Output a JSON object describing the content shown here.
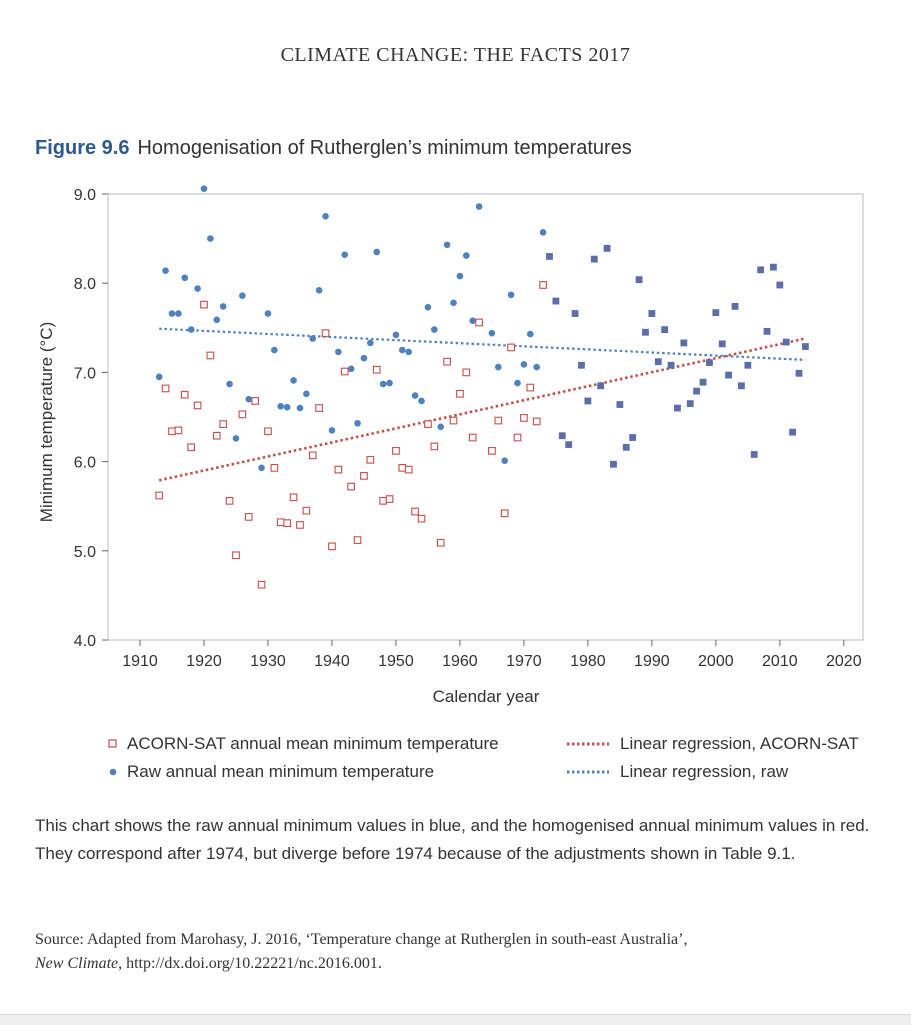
{
  "header": {
    "running_head": "CLIMATE CHANGE: THE FACTS 2017"
  },
  "figure": {
    "label": "Figure 9.6",
    "title": "Homogenisation of Rutherglen’s minimum temperatures"
  },
  "legend": {
    "acorn": "ACORN-SAT annual mean minimum temperature",
    "raw": "Raw annual mean minimum temperature",
    "reg_acorn": "Linear regression, ACORN-SAT",
    "reg_raw": "Linear regression, raw"
  },
  "caption": "This chart shows the raw annual minimum values in blue, and the homogenised annual minimum values in red. They correspond after 1974, but diverge before 1974 because of the adjustments shown in Table 9.1.",
  "source": {
    "prefix": "Source: Adapted from Marohasy, J. 2016, ‘Temperature change at Rutherglen in south-east Australia’,",
    "journal": "New Climate",
    "suffix": ", http://dx.doi.org/10.22221/nc.2016.001."
  },
  "colors": {
    "acorn": "#c0504d",
    "raw": "#4f81bd",
    "raw_marker_post1974": "#5b6ea8",
    "axis": "#666666",
    "frame": "#bbbbbb"
  },
  "chart_data": {
    "type": "scatter",
    "xlabel": "Calendar year",
    "ylabel": "Minimum temperature (°C)",
    "xlim": [
      1905,
      2023
    ],
    "ylim": [
      4.0,
      9.0
    ],
    "xticks": [
      "1910",
      "1920",
      "1930",
      "1940",
      "1950",
      "1960",
      "1970",
      "1980",
      "1990",
      "2000",
      "2010",
      "2020"
    ],
    "yticks": [
      "4.0",
      "5.0",
      "6.0",
      "7.0",
      "8.0",
      "9.0"
    ],
    "grid": false,
    "series": [
      {
        "name": "ACORN-SAT annual mean minimum temperature",
        "marker": "open-square",
        "points": [
          [
            1913,
            5.62
          ],
          [
            1914,
            6.82
          ],
          [
            1915,
            6.34
          ],
          [
            1916,
            6.35
          ],
          [
            1917,
            6.75
          ],
          [
            1918,
            6.16
          ],
          [
            1919,
            6.63
          ],
          [
            1920,
            7.76
          ],
          [
            1921,
            7.19
          ],
          [
            1922,
            6.29
          ],
          [
            1923,
            6.42
          ],
          [
            1924,
            5.56
          ],
          [
            1925,
            4.95
          ],
          [
            1926,
            6.53
          ],
          [
            1927,
            5.38
          ],
          [
            1928,
            6.68
          ],
          [
            1929,
            4.62
          ],
          [
            1930,
            6.34
          ],
          [
            1931,
            5.93
          ],
          [
            1932,
            5.32
          ],
          [
            1933,
            5.31
          ],
          [
            1934,
            5.6
          ],
          [
            1935,
            5.29
          ],
          [
            1936,
            5.45
          ],
          [
            1937,
            6.07
          ],
          [
            1938,
            6.6
          ],
          [
            1939,
            7.44
          ],
          [
            1940,
            5.05
          ],
          [
            1941,
            5.91
          ],
          [
            1942,
            7.01
          ],
          [
            1943,
            5.72
          ],
          [
            1944,
            5.12
          ],
          [
            1945,
            5.84
          ],
          [
            1946,
            6.02
          ],
          [
            1947,
            7.03
          ],
          [
            1948,
            5.56
          ],
          [
            1949,
            5.58
          ],
          [
            1950,
            6.12
          ],
          [
            1951,
            5.93
          ],
          [
            1952,
            5.91
          ],
          [
            1953,
            5.44
          ],
          [
            1954,
            5.36
          ],
          [
            1955,
            6.42
          ],
          [
            1956,
            6.17
          ],
          [
            1957,
            5.09
          ],
          [
            1958,
            7.12
          ],
          [
            1959,
            6.46
          ],
          [
            1960,
            6.76
          ],
          [
            1961,
            7.0
          ],
          [
            1962,
            6.27
          ],
          [
            1963,
            7.56
          ],
          [
            1965,
            6.12
          ],
          [
            1966,
            6.46
          ],
          [
            1967,
            5.42
          ],
          [
            1968,
            7.28
          ],
          [
            1969,
            6.27
          ],
          [
            1970,
            6.49
          ],
          [
            1971,
            6.83
          ],
          [
            1972,
            6.45
          ],
          [
            1973,
            7.98
          ]
        ]
      },
      {
        "name": "Raw annual mean minimum temperature",
        "marker": "dot",
        "points": [
          [
            1913,
            6.95
          ],
          [
            1914,
            8.14
          ],
          [
            1915,
            7.66
          ],
          [
            1916,
            7.66
          ],
          [
            1917,
            8.06
          ],
          [
            1918,
            7.48
          ],
          [
            1919,
            7.94
          ],
          [
            1920,
            9.06
          ],
          [
            1921,
            8.5
          ],
          [
            1922,
            7.59
          ],
          [
            1923,
            7.74
          ],
          [
            1924,
            6.87
          ],
          [
            1925,
            6.26
          ],
          [
            1926,
            7.86
          ],
          [
            1927,
            6.7
          ],
          [
            1929,
            5.93
          ],
          [
            1930,
            7.66
          ],
          [
            1931,
            7.25
          ],
          [
            1932,
            6.62
          ],
          [
            1933,
            6.61
          ],
          [
            1934,
            6.91
          ],
          [
            1935,
            6.6
          ],
          [
            1936,
            6.76
          ],
          [
            1937,
            7.38
          ],
          [
            1938,
            7.92
          ],
          [
            1939,
            8.75
          ],
          [
            1940,
            6.35
          ],
          [
            1941,
            7.23
          ],
          [
            1942,
            8.32
          ],
          [
            1943,
            7.04
          ],
          [
            1944,
            6.43
          ],
          [
            1945,
            7.16
          ],
          [
            1946,
            7.33
          ],
          [
            1947,
            8.35
          ],
          [
            1948,
            6.87
          ],
          [
            1949,
            6.88
          ],
          [
            1950,
            7.42
          ],
          [
            1951,
            7.25
          ],
          [
            1952,
            7.23
          ],
          [
            1953,
            6.74
          ],
          [
            1954,
            6.68
          ],
          [
            1955,
            7.73
          ],
          [
            1956,
            7.48
          ],
          [
            1957,
            6.39
          ],
          [
            1958,
            8.43
          ],
          [
            1959,
            7.78
          ],
          [
            1960,
            8.08
          ],
          [
            1961,
            8.31
          ],
          [
            1962,
            7.58
          ],
          [
            1963,
            8.86
          ],
          [
            1965,
            7.44
          ],
          [
            1966,
            7.06
          ],
          [
            1967,
            6.01
          ],
          [
            1968,
            7.87
          ],
          [
            1969,
            6.88
          ],
          [
            1970,
            7.09
          ],
          [
            1971,
            7.43
          ],
          [
            1972,
            7.06
          ],
          [
            1973,
            8.57
          ],
          [
            1974,
            8.3
          ],
          [
            1975,
            7.8
          ],
          [
            1976,
            6.29
          ],
          [
            1977,
            6.19
          ],
          [
            1978,
            7.66
          ],
          [
            1979,
            7.08
          ],
          [
            1980,
            6.68
          ],
          [
            1981,
            8.27
          ],
          [
            1982,
            6.85
          ],
          [
            1983,
            8.39
          ],
          [
            1984,
            5.97
          ],
          [
            1985,
            6.64
          ],
          [
            1986,
            6.16
          ],
          [
            1987,
            6.27
          ],
          [
            1988,
            8.04
          ],
          [
            1989,
            7.45
          ],
          [
            1990,
            7.66
          ],
          [
            1991,
            7.12
          ],
          [
            1992,
            7.48
          ],
          [
            1993,
            7.08
          ],
          [
            1994,
            6.6
          ],
          [
            1995,
            7.33
          ],
          [
            1996,
            6.65
          ],
          [
            1997,
            6.79
          ],
          [
            1998,
            6.89
          ],
          [
            1999,
            7.11
          ],
          [
            2000,
            7.67
          ],
          [
            2001,
            7.32
          ],
          [
            2002,
            6.97
          ],
          [
            2003,
            7.74
          ],
          [
            2004,
            6.85
          ],
          [
            2005,
            7.08
          ],
          [
            2006,
            6.08
          ],
          [
            2007,
            8.15
          ],
          [
            2008,
            7.46
          ],
          [
            2009,
            8.18
          ],
          [
            2010,
            7.98
          ],
          [
            2011,
            7.34
          ],
          [
            2012,
            6.33
          ],
          [
            2013,
            6.99
          ],
          [
            2014,
            7.29
          ]
        ]
      },
      {
        "name": "Linear regression, ACORN-SAT",
        "style": "dotted",
        "points": [
          [
            1913,
            5.79
          ],
          [
            2014,
            7.38
          ]
        ]
      },
      {
        "name": "Linear regression, raw",
        "style": "dotted",
        "points": [
          [
            1913,
            7.49
          ],
          [
            2014,
            7.14
          ]
        ]
      }
    ]
  }
}
